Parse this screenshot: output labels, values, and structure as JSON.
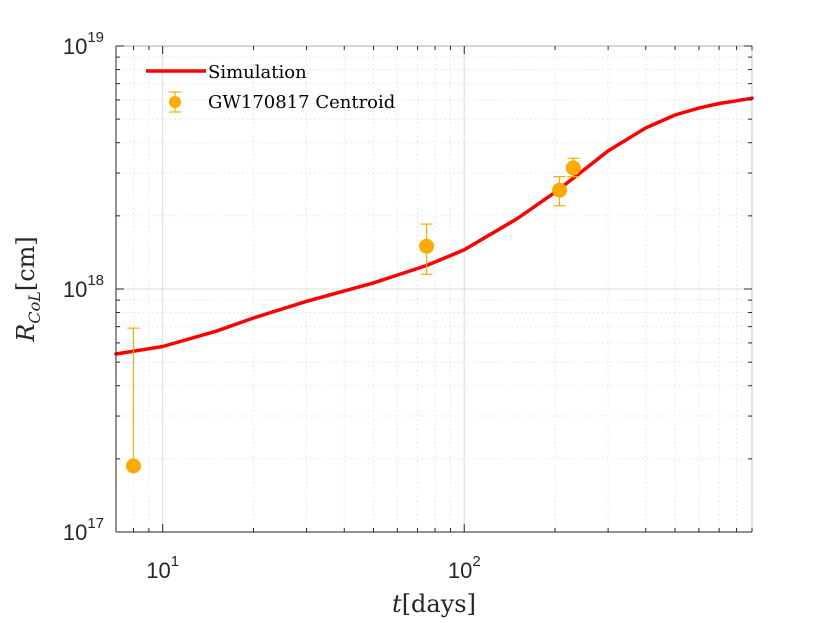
{
  "chart_data": {
    "type": "scatter",
    "title": "",
    "xlabel": {
      "var": "t",
      "unit": "[days]"
    },
    "ylabel": {
      "var": "R",
      "sub": "CoL",
      "unit": "[cm]"
    },
    "x_scale": "log",
    "y_scale": "log",
    "xlim": [
      7,
      900
    ],
    "ylim": [
      1e+17,
      1e+19
    ],
    "grid": true,
    "minor_grid": true,
    "legend_position": "top-left",
    "x_ticks": [
      {
        "value": 10,
        "base": "10",
        "exp": "1"
      },
      {
        "value": 100,
        "base": "10",
        "exp": "2"
      }
    ],
    "y_ticks": [
      {
        "value": 1e+17,
        "base": "10",
        "exp": "17"
      },
      {
        "value": 1e+18,
        "base": "10",
        "exp": "18"
      },
      {
        "value": 1e+19,
        "base": "10",
        "exp": "19"
      }
    ],
    "series": [
      {
        "name": "Simulation",
        "kind": "line",
        "color": "#ff0000",
        "x": [
          7,
          10,
          15,
          20,
          30,
          50,
          75,
          100,
          150,
          200,
          250,
          300,
          400,
          500,
          600,
          700,
          800,
          900
        ],
        "y": [
          5.4e+17,
          5.8e+17,
          6.7e+17,
          7.6e+17,
          8.9e+17,
          1.06e+18,
          1.25e+18,
          1.45e+18,
          1.95e+18,
          2.5e+18,
          3.1e+18,
          3.7e+18,
          4.6e+18,
          5.2e+18,
          5.55e+18,
          5.8e+18,
          5.95e+18,
          6.1e+18
        ]
      },
      {
        "name": "GW170817 Centroid",
        "kind": "errorbar",
        "color": "#ffaa00",
        "points": [
          {
            "x": 8,
            "y": 1.87e+17,
            "ylow": 1.87e+17,
            "yhigh": 6.9e+17
          },
          {
            "x": 75,
            "y": 1.5e+18,
            "ylow": 1.15e+18,
            "yhigh": 1.85e+18
          },
          {
            "x": 207,
            "y": 2.55e+18,
            "ylow": 2.2e+18,
            "yhigh": 2.9e+18
          },
          {
            "x": 230,
            "y": 3.15e+18,
            "ylow": 2.9e+18,
            "yhigh": 3.45e+18
          }
        ]
      }
    ]
  }
}
